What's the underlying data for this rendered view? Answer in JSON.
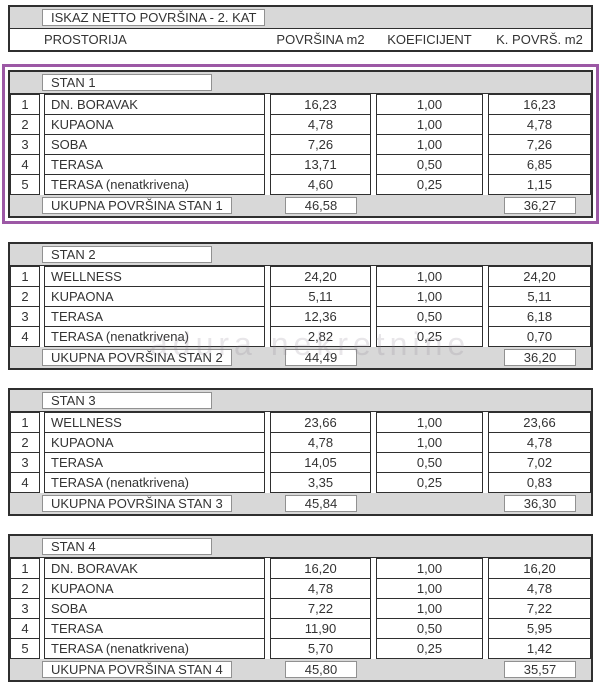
{
  "header": {
    "title": "ISKAZ NETTO POVRŠINA - 2. KAT",
    "columns": {
      "room": "PROSTORIJA",
      "area": "POVRŠINA m2",
      "coef": "KOEFICIJENT",
      "karea": "K. POVRŠ. m2"
    }
  },
  "watermark": "adura nekretnine",
  "colors": {
    "highlight_border": "#9c58a5",
    "band_gray": "#d8d8d8"
  },
  "sections": [
    {
      "name": "STAN 1",
      "highlighted": true,
      "rows": [
        {
          "num": "1",
          "name": "DN. BORAVAK",
          "area": "16,23",
          "coef": "1,00",
          "karea": "16,23"
        },
        {
          "num": "2",
          "name": "KUPAONA",
          "area": "4,78",
          "coef": "1,00",
          "karea": "4,78"
        },
        {
          "num": "3",
          "name": "SOBA",
          "area": "7,26",
          "coef": "1,00",
          "karea": "7,26"
        },
        {
          "num": "4",
          "name": "TERASA",
          "area": "13,71",
          "coef": "0,50",
          "karea": "6,85"
        },
        {
          "num": "5",
          "name": "TERASA (nenatkrivena)",
          "area": "4,60",
          "coef": "0,25",
          "karea": "1,15"
        }
      ],
      "total": {
        "label": "UKUPNA POVRŠINA STAN 1",
        "area": "46,58",
        "karea": "36,27"
      }
    },
    {
      "name": "STAN 2",
      "highlighted": false,
      "rows": [
        {
          "num": "1",
          "name": "WELLNESS",
          "area": "24,20",
          "coef": "1,00",
          "karea": "24,20"
        },
        {
          "num": "2",
          "name": "KUPAONA",
          "area": "5,11",
          "coef": "1,00",
          "karea": "5,11"
        },
        {
          "num": "3",
          "name": "TERASA",
          "area": "12,36",
          "coef": "0,50",
          "karea": "6,18"
        },
        {
          "num": "4",
          "name": "TERASA (nenatkrivena)",
          "area": "2,82",
          "coef": "0,25",
          "karea": "0,70"
        }
      ],
      "total": {
        "label": "UKUPNA POVRŠINA STAN 2",
        "area": "44,49",
        "karea": "36,20"
      }
    },
    {
      "name": "STAN 3",
      "highlighted": false,
      "rows": [
        {
          "num": "1",
          "name": "WELLNESS",
          "area": "23,66",
          "coef": "1,00",
          "karea": "23,66"
        },
        {
          "num": "2",
          "name": "KUPAONA",
          "area": "4,78",
          "coef": "1,00",
          "karea": "4,78"
        },
        {
          "num": "3",
          "name": "TERASA",
          "area": "14,05",
          "coef": "0,50",
          "karea": "7,02"
        },
        {
          "num": "4",
          "name": "TERASA (nenatkrivena)",
          "area": "3,35",
          "coef": "0,25",
          "karea": "0,83"
        }
      ],
      "total": {
        "label": "UKUPNA POVRŠINA STAN 3",
        "area": "45,84",
        "karea": "36,30"
      }
    },
    {
      "name": "STAN 4",
      "highlighted": false,
      "rows": [
        {
          "num": "1",
          "name": "DN. BORAVAK",
          "area": "16,20",
          "coef": "1,00",
          "karea": "16,20"
        },
        {
          "num": "2",
          "name": "KUPAONA",
          "area": "4,78",
          "coef": "1,00",
          "karea": "4,78"
        },
        {
          "num": "3",
          "name": "SOBA",
          "area": "7,22",
          "coef": "1,00",
          "karea": "7,22"
        },
        {
          "num": "4",
          "name": "TERASA",
          "area": "11,90",
          "coef": "0,50",
          "karea": "5,95"
        },
        {
          "num": "5",
          "name": "TERASA (nenatkrivena)",
          "area": "5,70",
          "coef": "0,25",
          "karea": "1,42"
        }
      ],
      "total": {
        "label": "UKUPNA POVRŠINA STAN 4",
        "area": "45,80",
        "karea": "35,57"
      }
    }
  ]
}
